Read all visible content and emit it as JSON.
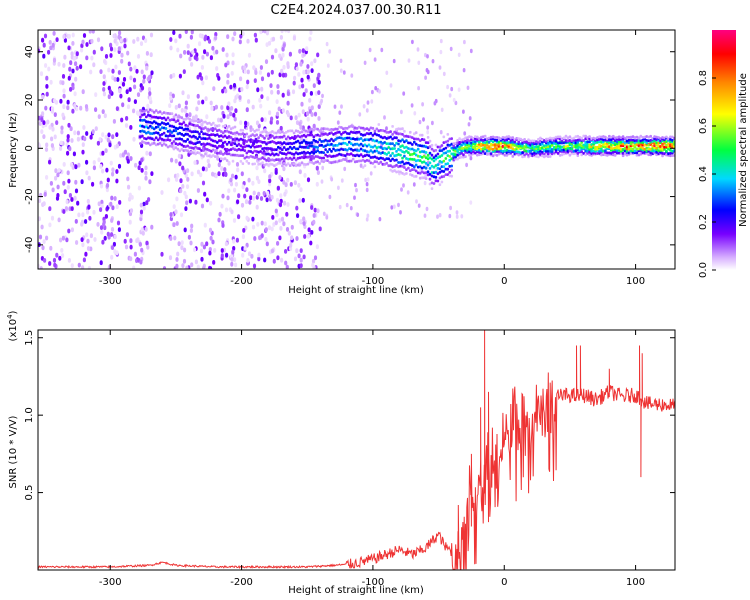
{
  "figure_title": "C2E4.2024.037.00.30.R11",
  "chart_data": [
    {
      "type": "heatmap",
      "xlabel": "Height of straight line (km)",
      "ylabel": "Frequency (Hz)",
      "xlim": [
        -355,
        130
      ],
      "ylim": [
        -50,
        49
      ],
      "x_ticks": [
        {
          "value": -300,
          "label": "-300"
        },
        {
          "value": -200,
          "label": "-200"
        },
        {
          "value": -100,
          "label": "-100"
        },
        {
          "value": 0,
          "label": "0"
        },
        {
          "value": 100,
          "label": "100"
        }
      ],
      "y_ticks": [
        {
          "value": 40,
          "label": "40"
        },
        {
          "value": 20,
          "label": "20"
        },
        {
          "value": 0,
          "label": "0"
        },
        {
          "value": -20,
          "label": "-20"
        },
        {
          "value": -40,
          "label": "-40"
        }
      ],
      "colorbar": {
        "label": "Normalized spectral amplitude",
        "range": [
          0,
          1
        ],
        "ticks": [
          {
            "value": 0.0,
            "label": "0.0"
          },
          {
            "value": 0.2,
            "label": "0.2"
          },
          {
            "value": 0.4,
            "label": "0.4"
          },
          {
            "value": 0.6,
            "label": "0.6"
          },
          {
            "value": 0.8,
            "label": "0.8"
          }
        ],
        "colors": [
          "#ffffff",
          "#d9b3ff",
          "#7700ff",
          "#0000ff",
          "#00d9ff",
          "#00ff40",
          "#ffff00",
          "#ff8800",
          "#ff0000",
          "#ff0080"
        ]
      },
      "ridge": {
        "x": [
          -275,
          -260,
          -240,
          -220,
          -200,
          -180,
          -160,
          -140,
          -120,
          -100,
          -80,
          -60,
          -55,
          -45,
          -35,
          -25,
          -15,
          0,
          20,
          40,
          60,
          80,
          100,
          130
        ],
        "frequency": [
          9,
          8,
          5,
          3,
          1,
          0,
          0,
          1,
          2,
          1,
          -1,
          -4,
          -8,
          -4,
          0,
          1,
          1,
          1,
          0,
          1,
          1,
          1,
          1,
          1
        ],
        "amplitude": [
          0.35,
          0.3,
          0.25,
          0.2,
          0.18,
          0.2,
          0.25,
          0.3,
          0.35,
          0.4,
          0.5,
          0.55,
          0.45,
          0.5,
          0.55,
          0.6,
          0.8,
          0.85,
          0.5,
          0.55,
          0.6,
          0.8,
          0.85,
          0.9
        ]
      }
    },
    {
      "type": "line",
      "xlabel": "Height of straight line (km)",
      "ylabel": "SNR (10 * V/V)",
      "y_multiplier": "(x10",
      "y_multiplier_exp": "4",
      "xlim": [
        -355,
        130
      ],
      "ylim": [
        0,
        1.55
      ],
      "color": "#ee3333",
      "x_ticks": [
        {
          "value": -300,
          "label": "-300"
        },
        {
          "value": -200,
          "label": "-200"
        },
        {
          "value": -100,
          "label": "-100"
        },
        {
          "value": 0,
          "label": "0"
        },
        {
          "value": 100,
          "label": "100"
        }
      ],
      "y_ticks": [
        {
          "value": 0.5,
          "label": "0.5"
        },
        {
          "value": 1.0,
          "label": "1.0"
        },
        {
          "value": 1.5,
          "label": "1.5"
        }
      ],
      "x": [
        -355,
        -300,
        -270,
        -260,
        -250,
        -220,
        -200,
        -180,
        -150,
        -130,
        -115,
        -100,
        -90,
        -80,
        -70,
        -60,
        -50,
        -45,
        -40,
        -35,
        -30,
        -25,
        -20,
        -15,
        -12,
        -10,
        -5,
        0,
        5,
        10,
        20,
        30,
        40,
        50,
        55,
        60,
        70,
        80,
        90,
        100,
        105,
        110,
        120,
        130
      ],
      "y": [
        0.02,
        0.02,
        0.03,
        0.05,
        0.03,
        0.02,
        0.02,
        0.02,
        0.02,
        0.03,
        0.04,
        0.07,
        0.1,
        0.13,
        0.1,
        0.14,
        0.23,
        0.15,
        0.12,
        0.25,
        0.45,
        0.55,
        0.6,
        0.68,
        0.72,
        0.75,
        0.85,
        0.92,
        0.95,
        1.0,
        1.03,
        1.08,
        1.12,
        1.13,
        1.12,
        1.13,
        1.1,
        1.15,
        1.12,
        1.13,
        1.1,
        1.07,
        1.07,
        1.06
      ],
      "spikes": [
        {
          "x": -35,
          "y": 0.42
        },
        {
          "x": -25,
          "y": 0.75
        },
        {
          "x": -18,
          "y": 1.05
        },
        {
          "x": -15,
          "y": 1.55
        },
        {
          "x": -12,
          "y": 1.15
        },
        {
          "x": 55,
          "y": 1.45
        },
        {
          "x": 58,
          "y": 1.45
        },
        {
          "x": 80,
          "y": 1.3
        },
        {
          "x": 103,
          "y": 1.45
        },
        {
          "x": 105,
          "y": 1.4
        },
        {
          "x": 104,
          "y": 0.6
        }
      ]
    }
  ]
}
